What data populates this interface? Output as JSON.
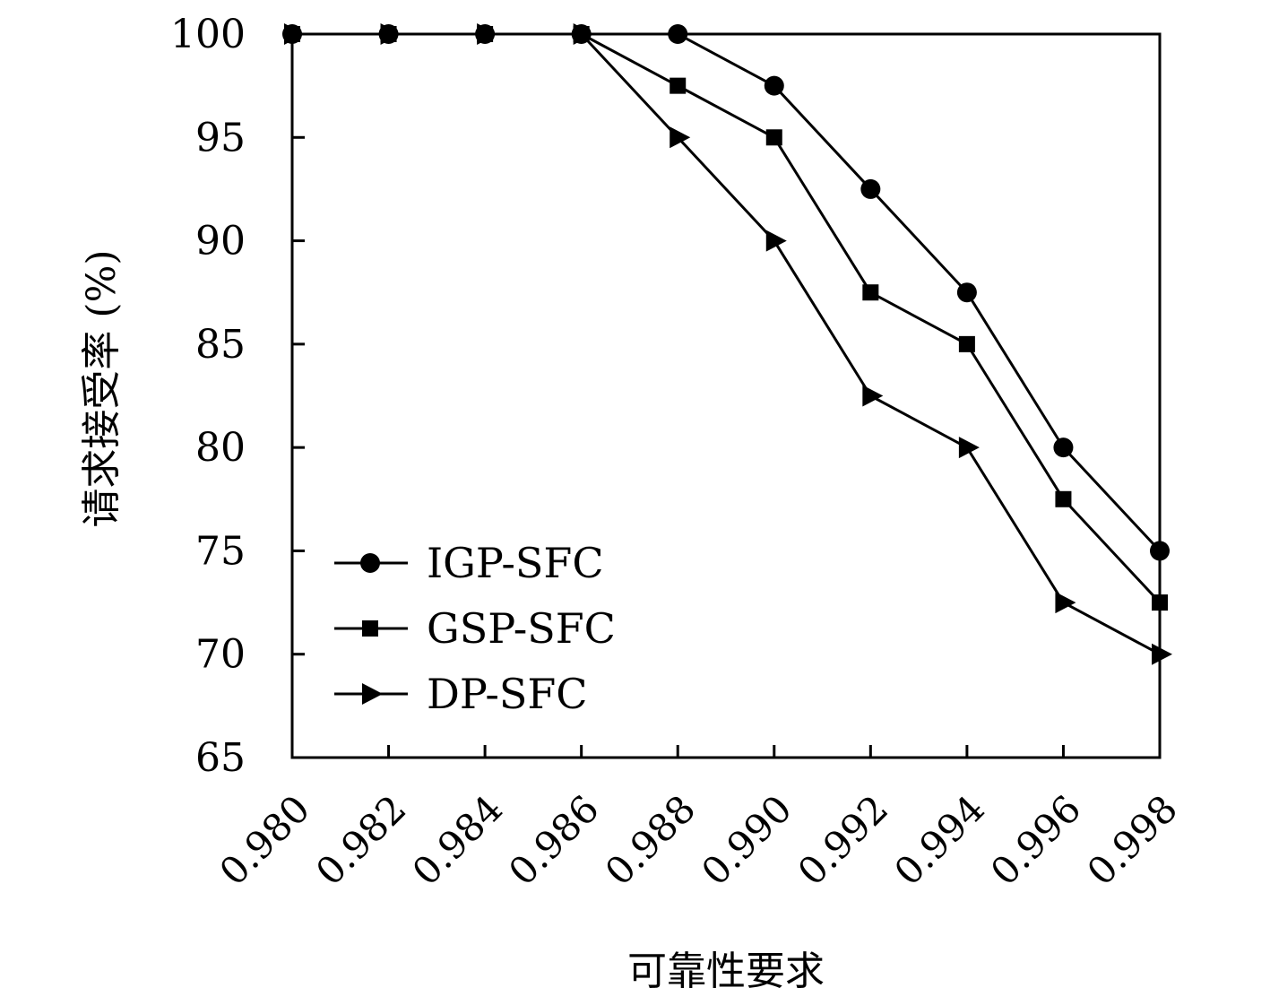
{
  "chart_data": {
    "type": "line",
    "xlabel": "可靠性要求",
    "ylabel": "请求接受率 (%)",
    "x": [
      0.98,
      0.982,
      0.984,
      0.986,
      0.988,
      0.99,
      0.992,
      0.994,
      0.996,
      0.998
    ],
    "x_tick_labels": [
      "0.980",
      "0.982",
      "0.984",
      "0.986",
      "0.988",
      "0.990",
      "0.992",
      "0.994",
      "0.996",
      "0.998"
    ],
    "ylim": [
      65,
      100
    ],
    "y_ticks": [
      65,
      70,
      75,
      80,
      85,
      90,
      95,
      100
    ],
    "y_tick_labels": [
      "65",
      "70",
      "75",
      "80",
      "85",
      "90",
      "95",
      "100"
    ],
    "grid": false,
    "legend_position": "lower-left",
    "series": [
      {
        "name": "IGP-SFC",
        "marker": "circle",
        "color": "#000000",
        "values": [
          100,
          100,
          100,
          100,
          100,
          97.5,
          92.5,
          87.5,
          80,
          75
        ]
      },
      {
        "name": "GSP-SFC",
        "marker": "square",
        "color": "#000000",
        "values": [
          100,
          100,
          100,
          100,
          97.5,
          95,
          87.5,
          85,
          77.5,
          72.5
        ]
      },
      {
        "name": "DP-SFC",
        "marker": "triangle-right",
        "color": "#000000",
        "values": [
          100,
          100,
          100,
          100,
          95,
          90,
          82.5,
          80,
          72.5,
          70
        ]
      }
    ]
  }
}
